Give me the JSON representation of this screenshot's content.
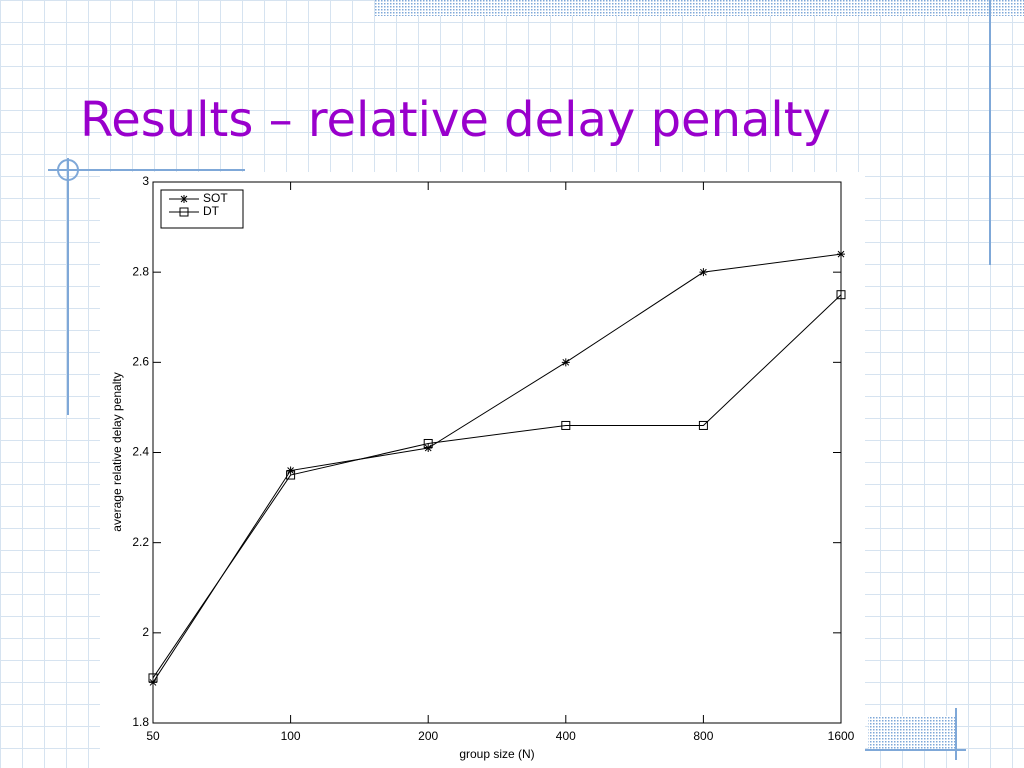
{
  "slide_title": "Results – relative delay penalty",
  "chart_data": {
    "type": "line",
    "xlabel": "group size (N)",
    "ylabel": "average relative delay penalty",
    "x": [
      50,
      100,
      200,
      400,
      800,
      1600
    ],
    "series": [
      {
        "name": "SOT",
        "color": "#000000",
        "marker": "asterisk",
        "values": [
          1.89,
          2.36,
          2.41,
          2.6,
          2.8,
          2.84
        ]
      },
      {
        "name": "DT",
        "color": "#000000",
        "marker": "square",
        "values": [
          1.9,
          2.35,
          2.42,
          2.46,
          2.46,
          2.75
        ]
      }
    ],
    "xscale": "log",
    "xlim": [
      50,
      1600
    ],
    "xticks": [
      50,
      100,
      200,
      400,
      800,
      1600
    ],
    "ylim": [
      1.8,
      3
    ],
    "yticks": [
      1.8,
      2,
      2.2,
      2.4,
      2.6,
      2.8,
      3
    ],
    "grid": false,
    "legend_loc": "upper left"
  }
}
